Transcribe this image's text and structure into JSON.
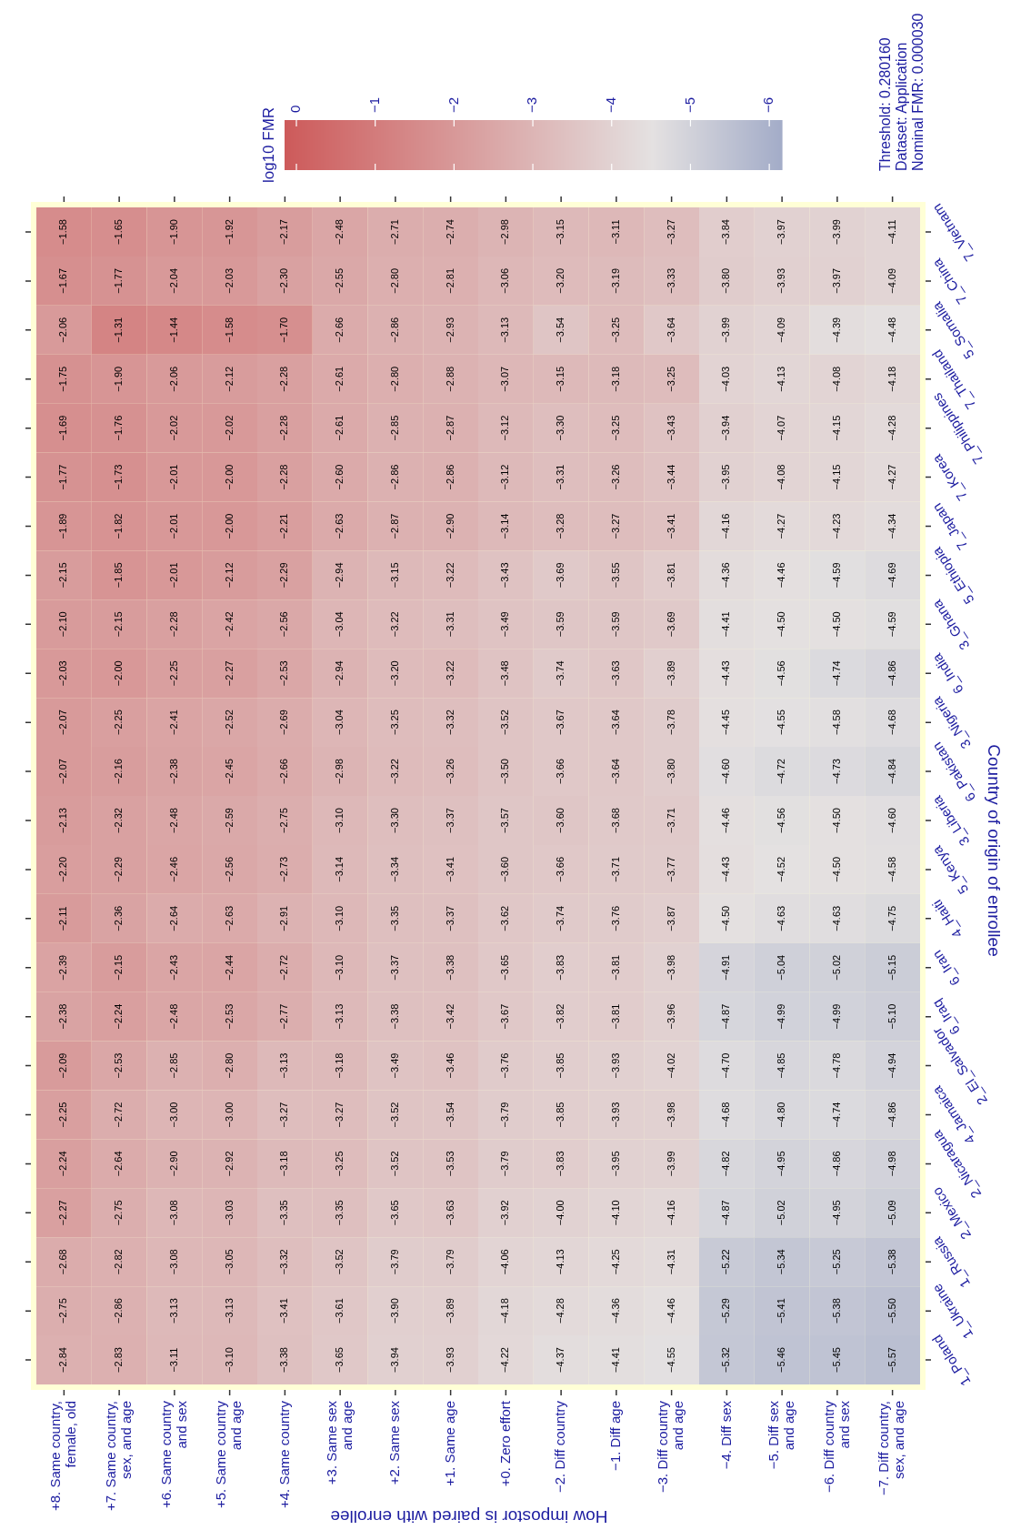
{
  "chart_data": {
    "type": "heatmap",
    "xlabel": "How impostor is paired with enrollee",
    "ylabel": "Country of origin of enrollee",
    "clabel": "log10 FMR",
    "categories": [
      "+8. Same country, female, old",
      "+7. Same country, sex, and age",
      "+6. Same country and sex",
      "+5. Same country and age",
      "+4. Same country",
      "+3. Same sex and age",
      "+2. Same sex",
      "+1. Same age",
      "+0. Zero effort",
      "−2. Diff country",
      "−1. Diff age",
      "−3. Diff country and age",
      "−4. Diff sex",
      "−5. Diff sex and age",
      "−6. Diff country and sex",
      "−7. Diff country, sex, and age"
    ],
    "y_categories": [
      "7_Vietnam",
      "7_China",
      "5_Somalia",
      "7_Thailand",
      "7_Philippines",
      "7_Korea",
      "7_Japan",
      "5_Ethiopia",
      "3_Ghana",
      "6_India",
      "3_Nigeria",
      "6_Pakistan",
      "3_Liberia",
      "5_Kenya",
      "4_Haiti",
      "6_Iran",
      "6_Iraq",
      "2_El_Salvador",
      "4_Jamaica",
      "2_Nicaragua",
      "2_Mexico",
      "1_Russia",
      "1_Ukraine",
      "1_Poland"
    ],
    "cells": [
      [
        -1.58,
        -1.65,
        -1.9,
        -1.92,
        -2.17,
        -2.48,
        -2.71,
        -2.74,
        -2.98,
        -3.15,
        -3.11,
        -3.27,
        -3.84,
        -3.97,
        -3.99,
        -4.11
      ],
      [
        -1.67,
        -1.77,
        -2.04,
        -2.03,
        -2.3,
        -2.55,
        -2.8,
        -2.81,
        -3.06,
        -3.2,
        -3.19,
        -3.33,
        -3.8,
        -3.93,
        -3.97,
        -4.09
      ],
      [
        -2.06,
        -1.31,
        -1.44,
        -1.58,
        -1.7,
        -2.66,
        -2.86,
        -2.93,
        -3.13,
        -3.54,
        -3.25,
        -3.64,
        -3.99,
        -4.09,
        -4.39,
        -4.48
      ],
      [
        -1.75,
        -1.9,
        -2.06,
        -2.12,
        -2.28,
        -2.61,
        -2.8,
        -2.88,
        -3.07,
        -3.15,
        -3.18,
        -3.25,
        -4.03,
        -4.13,
        -4.08,
        -4.18
      ],
      [
        -1.69,
        -1.76,
        -2.02,
        -2.02,
        -2.28,
        -2.61,
        -2.85,
        -2.87,
        -3.12,
        -3.3,
        -3.25,
        -3.43,
        -3.94,
        -4.07,
        -4.15,
        -4.28
      ],
      [
        -1.77,
        -1.73,
        -2.01,
        -2.0,
        -2.28,
        -2.6,
        -2.86,
        -2.86,
        -3.12,
        -3.31,
        -3.26,
        -3.44,
        -3.95,
        -4.08,
        -4.15,
        -4.27
      ],
      [
        -1.89,
        -1.82,
        -2.01,
        -2.0,
        -2.21,
        -2.63,
        -2.87,
        -2.9,
        -3.14,
        -3.28,
        -3.27,
        -3.41,
        -4.16,
        -4.27,
        -4.23,
        -4.34
      ],
      [
        -2.15,
        -1.85,
        -2.01,
        -2.12,
        -2.29,
        -2.94,
        -3.15,
        -3.22,
        -3.43,
        -3.69,
        -3.55,
        -3.81,
        -4.36,
        -4.46,
        -4.59,
        -4.69
      ],
      [
        -2.1,
        -2.15,
        -2.28,
        -2.42,
        -2.56,
        -3.04,
        -3.22,
        -3.31,
        -3.49,
        -3.59,
        -3.59,
        -3.69,
        -4.41,
        -4.5,
        -4.5,
        -4.59
      ],
      [
        -2.03,
        -2.0,
        -2.25,
        -2.27,
        -2.53,
        -2.94,
        -3.2,
        -3.22,
        -3.48,
        -3.74,
        -3.63,
        -3.89,
        -4.43,
        -4.56,
        -4.74,
        -4.86
      ],
      [
        -2.07,
        -2.25,
        -2.41,
        -2.52,
        -2.69,
        -3.04,
        -3.25,
        -3.32,
        -3.52,
        -3.67,
        -3.64,
        -3.78,
        -4.45,
        -4.55,
        -4.58,
        -4.68
      ],
      [
        -2.07,
        -2.16,
        -2.38,
        -2.45,
        -2.66,
        -2.98,
        -3.22,
        -3.26,
        -3.5,
        -3.66,
        -3.64,
        -3.8,
        -4.6,
        -4.72,
        -4.73,
        -4.84
      ],
      [
        -2.13,
        -2.32,
        -2.48,
        -2.59,
        -2.75,
        -3.1,
        -3.3,
        -3.37,
        -3.57,
        -3.6,
        -3.68,
        -3.71,
        -4.46,
        -4.56,
        -4.5,
        -4.6
      ],
      [
        -2.2,
        -2.29,
        -2.46,
        -2.56,
        -2.73,
        -3.14,
        -3.34,
        -3.41,
        -3.6,
        -3.66,
        -3.71,
        -3.77,
        -4.43,
        -4.52,
        -4.5,
        -4.58
      ],
      [
        -2.11,
        -2.36,
        -2.64,
        -2.63,
        -2.91,
        -3.1,
        -3.35,
        -3.37,
        -3.62,
        -3.74,
        -3.76,
        -3.87,
        -4.5,
        -4.63,
        -4.63,
        -4.75
      ],
      [
        -2.39,
        -2.15,
        -2.43,
        -2.44,
        -2.72,
        -3.1,
        -3.37,
        -3.38,
        -3.65,
        -3.83,
        -3.81,
        -3.98,
        -4.91,
        -5.04,
        -5.02,
        -5.15
      ],
      [
        -2.38,
        -2.24,
        -2.48,
        -2.53,
        -2.77,
        -3.13,
        -3.38,
        -3.42,
        -3.67,
        -3.82,
        -3.81,
        -3.96,
        -4.87,
        -4.99,
        -4.99,
        -5.1
      ],
      [
        -2.09,
        -2.53,
        -2.85,
        -2.8,
        -3.13,
        -3.18,
        -3.49,
        -3.46,
        -3.76,
        -3.85,
        -3.93,
        -4.02,
        -4.7,
        -4.85,
        -4.78,
        -4.94
      ],
      [
        -2.25,
        -2.72,
        -3.0,
        -3.0,
        -3.27,
        -3.27,
        -3.52,
        -3.54,
        -3.79,
        -3.85,
        -3.93,
        -3.98,
        -4.68,
        -4.8,
        -4.74,
        -4.86
      ],
      [
        -2.24,
        -2.64,
        -2.9,
        -2.92,
        -3.18,
        -3.25,
        -3.52,
        -3.53,
        -3.79,
        -3.83,
        -3.95,
        -3.99,
        -4.82,
        -4.95,
        -4.86,
        -4.98
      ],
      [
        -2.27,
        -2.75,
        -3.08,
        -3.03,
        -3.35,
        -3.35,
        -3.65,
        -3.63,
        -3.92,
        -4.0,
        -4.1,
        -4.16,
        -4.87,
        -5.02,
        -4.95,
        -5.09
      ],
      [
        -2.68,
        -2.82,
        -3.08,
        -3.05,
        -3.32,
        -3.52,
        -3.79,
        -3.79,
        -4.06,
        -4.13,
        -4.25,
        -4.31,
        -5.22,
        -5.34,
        -5.25,
        -5.38
      ],
      [
        -2.75,
        -2.86,
        -3.13,
        -3.13,
        -3.41,
        -3.61,
        -3.9,
        -3.89,
        -4.18,
        -4.28,
        -4.36,
        -4.46,
        -5.29,
        -5.41,
        -5.38,
        -5.5
      ],
      [
        -2.84,
        -2.83,
        -3.11,
        -3.1,
        -3.38,
        -3.65,
        -3.94,
        -3.93,
        -4.22,
        -4.37,
        -4.41,
        -4.55,
        -5.32,
        -5.46,
        -5.45,
        -5.57
      ]
    ],
    "cell_labels": [
      [
        "−1.58",
        "−1.65",
        "−1.90",
        "−1.92",
        "−2.17",
        "−2.48",
        "−2.71",
        "−2.74",
        "−2.98",
        "−3.15",
        "−3.11",
        "−3.27",
        "−3.84",
        "−3.97",
        "−3.99",
        "−4.11"
      ],
      [
        "−1.67",
        "−1.77",
        "−2.04",
        "−2.03",
        "−2.30",
        "−2.55",
        "−2.80",
        "−2.81",
        "−3.06",
        "−3.20",
        "−3.19",
        "−3.33",
        "−3.80",
        "−3.93",
        "−3.97",
        "−4.09"
      ],
      [
        "−2.06",
        "−1.31",
        "−1.44",
        "−1.58",
        "−1.70",
        "−2.66",
        "−2.86",
        "−2.93",
        "−3.13",
        "−3.54",
        "−3.25",
        "−3.64",
        "−3.99",
        "−4.09",
        "−4.39",
        "−4.48"
      ],
      [
        "−1.75",
        "−1.90",
        "−2.06",
        "−2.12",
        "−2.28",
        "−2.61",
        "−2.80",
        "−2.88",
        "−3.07",
        "−3.15",
        "−3.18",
        "−3.25",
        "−4.03",
        "−4.13",
        "−4.08",
        "−4.18"
      ],
      [
        "−1.69",
        "−1.76",
        "−2.02",
        "−2.02",
        "−2.28",
        "−2.61",
        "−2.85",
        "−2.87",
        "−3.12",
        "−3.30",
        "−3.25",
        "−3.43",
        "−3.94",
        "−4.07",
        "−4.15",
        "−4.28"
      ],
      [
        "−1.77",
        "−1.73",
        "−2.01",
        "−2.00",
        "−2.28",
        "−2.60",
        "−2.86",
        "−2.86",
        "−3.12",
        "−3.31",
        "−3.26",
        "−3.44",
        "−3.95",
        "−4.08",
        "−4.15",
        "−4.27"
      ],
      [
        "−1.89",
        "−1.82",
        "−2.01",
        "−2.00",
        "−2.21",
        "−2.63",
        "−2.87",
        "−2.90",
        "−3.14",
        "−3.28",
        "−3.27",
        "−3.41",
        "−4.16",
        "−4.27",
        "−4.23",
        "−4.34"
      ],
      [
        "−2.15",
        "−1.85",
        "−2.01",
        "−2.12",
        "−2.29",
        "−2.94",
        "−3.15",
        "−3.22",
        "−3.43",
        "−3.69",
        "−3.55",
        "−3.81",
        "−4.36",
        "−4.46",
        "−4.59",
        "−4.69"
      ],
      [
        "−2.10",
        "−2.15",
        "−2.28",
        "−2.42",
        "−2.56",
        "−3.04",
        "−3.22",
        "−3.31",
        "−3.49",
        "−3.59",
        "−3.59",
        "−3.69",
        "−4.41",
        "−4.50",
        "−4.50",
        "−4.59"
      ],
      [
        "−2.03",
        "−2.00",
        "−2.25",
        "−2.27",
        "−2.53",
        "−2.94",
        "−3.20",
        "−3.22",
        "−3.48",
        "−3.74",
        "−3.63",
        "−3.89",
        "−4.43",
        "−4.56",
        "−4.74",
        "−4.86"
      ],
      [
        "−2.07",
        "−2.25",
        "−2.41",
        "−2.52",
        "−2.69",
        "−3.04",
        "−3.25",
        "−3.32",
        "−3.52",
        "−3.67",
        "−3.64",
        "−3.78",
        "−4.45",
        "−4.55",
        "−4.58",
        "−4.68"
      ],
      [
        "−2.07",
        "−2.16",
        "−2.38",
        "−2.45",
        "−2.66",
        "−2.98",
        "−3.22",
        "−3.26",
        "−3.50",
        "−3.66",
        "−3.64",
        "−3.80",
        "−4.60",
        "−4.72",
        "−4.73",
        "−4.84"
      ],
      [
        "−2.13",
        "−2.32",
        "−2.48",
        "−2.59",
        "−2.75",
        "−3.10",
        "−3.30",
        "−3.37",
        "−3.57",
        "−3.60",
        "−3.68",
        "−3.71",
        "−4.46",
        "−4.56",
        "−4.50",
        "−4.60"
      ],
      [
        "−2.20",
        "−2.29",
        "−2.46",
        "−2.56",
        "−2.73",
        "−3.14",
        "−3.34",
        "−3.41",
        "−3.60",
        "−3.66",
        "−3.71",
        "−3.77",
        "−4.43",
        "−4.52",
        "−4.50",
        "−4.58"
      ],
      [
        "−2.11",
        "−2.36",
        "−2.64",
        "−2.63",
        "−2.91",
        "−3.10",
        "−3.35",
        "−3.37",
        "−3.62",
        "−3.74",
        "−3.76",
        "−3.87",
        "−4.50",
        "−4.63",
        "−4.63",
        "−4.75"
      ],
      [
        "−2.39",
        "−2.15",
        "−2.43",
        "−2.44",
        "−2.72",
        "−3.10",
        "−3.37",
        "−3.38",
        "−3.65",
        "−3.83",
        "−3.81",
        "−3.98",
        "−4.91",
        "−5.04",
        "−5.02",
        "−5.15"
      ],
      [
        "−2.38",
        "−2.24",
        "−2.48",
        "−2.53",
        "−2.77",
        "−3.13",
        "−3.38",
        "−3.42",
        "−3.67",
        "−3.82",
        "−3.81",
        "−3.96",
        "−4.87",
        "−4.99",
        "−4.99",
        "−5.10"
      ],
      [
        "−2.09",
        "−2.53",
        "−2.85",
        "−2.80",
        "−3.13",
        "−3.18",
        "−3.49",
        "−3.46",
        "−3.76",
        "−3.85",
        "−3.93",
        "−4.02",
        "−4.70",
        "−4.85",
        "−4.78",
        "−4.94"
      ],
      [
        "−2.25",
        "−2.72",
        "−3.00",
        "−3.00",
        "−3.27",
        "−3.27",
        "−3.52",
        "−3.54",
        "−3.79",
        "−3.85",
        "−3.93",
        "−3.98",
        "−4.68",
        "−4.80",
        "−4.74",
        "−4.86"
      ],
      [
        "−2.24",
        "−2.64",
        "−2.90",
        "−2.92",
        "−3.18",
        "−3.25",
        "−3.52",
        "−3.53",
        "−3.79",
        "−3.83",
        "−3.95",
        "−3.99",
        "−4.82",
        "−4.95",
        "−4.86",
        "−4.98"
      ],
      [
        "−2.27",
        "−2.75",
        "−3.08",
        "−3.03",
        "−3.35",
        "−3.35",
        "−3.65",
        "−3.63",
        "−3.92",
        "−4.00",
        "−4.10",
        "−4.16",
        "−4.87",
        "−5.02",
        "−4.95",
        "−5.09"
      ],
      [
        "−2.68",
        "−2.82",
        "−3.08",
        "−3.05",
        "−3.32",
        "−3.52",
        "−3.79",
        "−3.79",
        "−4.06",
        "−4.13",
        "−4.25",
        "−4.31",
        "−5.22",
        "−5.34",
        "−5.25",
        "−5.38"
      ],
      [
        "−2.75",
        "−2.86",
        "−3.13",
        "−3.13",
        "−3.41",
        "−3.61",
        "−3.90",
        "−3.89",
        "−4.18",
        "−4.28",
        "−4.36",
        "−4.46",
        "−5.29",
        "−5.41",
        "−5.38",
        "−5.50"
      ],
      [
        "−2.84",
        "−2.83",
        "−3.11",
        "−3.10",
        "−3.38",
        "−3.65",
        "−3.94",
        "−3.93",
        "−4.22",
        "−4.37",
        "−4.41",
        "−4.55",
        "−5.32",
        "−5.46",
        "−5.45",
        "−5.57"
      ]
    ],
    "clim": [
      0.15,
      -6.16
    ],
    "cticks": [
      0,
      -1,
      -2,
      -3,
      -4,
      -5,
      -6
    ],
    "annotations": [
      "Threshold: 0.280160",
      "Dataset: Application",
      "Nominal FMR: 0.000030"
    ]
  }
}
